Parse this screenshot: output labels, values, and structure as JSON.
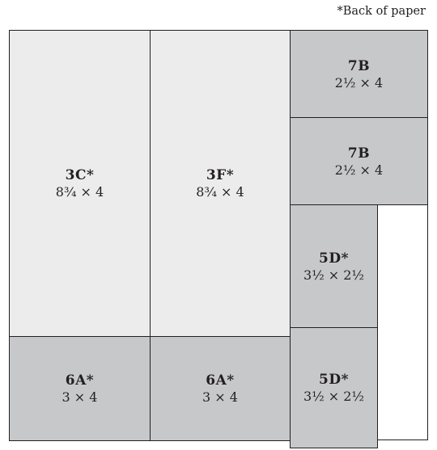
{
  "note": "*Back of paper",
  "pieces": [
    {
      "code": "3C*",
      "size": "8¾ × 4"
    },
    {
      "code": "3F*",
      "size": "8¾ × 4"
    },
    {
      "code": "7B",
      "size": "2½ × 4"
    },
    {
      "code": "7B",
      "size": "2½ × 4"
    },
    {
      "code": "5D*",
      "size": "3½ × 2½"
    },
    {
      "code": "6A*",
      "size": "3 × 4"
    },
    {
      "code": "6A*",
      "size": "3 × 4"
    },
    {
      "code": "5D*",
      "size": "3½ × 2½"
    }
  ],
  "colors": {
    "light_piece": "#ececec",
    "dark_piece": "#c7c8ca",
    "line": "#231f20"
  }
}
